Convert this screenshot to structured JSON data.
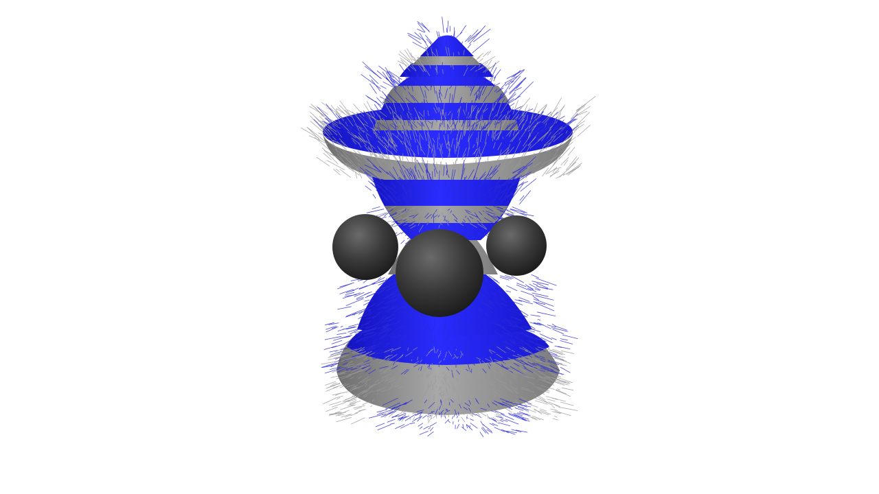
{
  "scene": {
    "subject": "furry-striped-lathe-sculpture",
    "colors": {
      "background": "#ffffff",
      "stripe_blue": "#1f22ee",
      "stripe_gray": "#8a8a8a",
      "sphere": "#3a3a3a",
      "hair_blue": "#2a2ad8",
      "hair_gray": "#9a9a9a"
    }
  }
}
